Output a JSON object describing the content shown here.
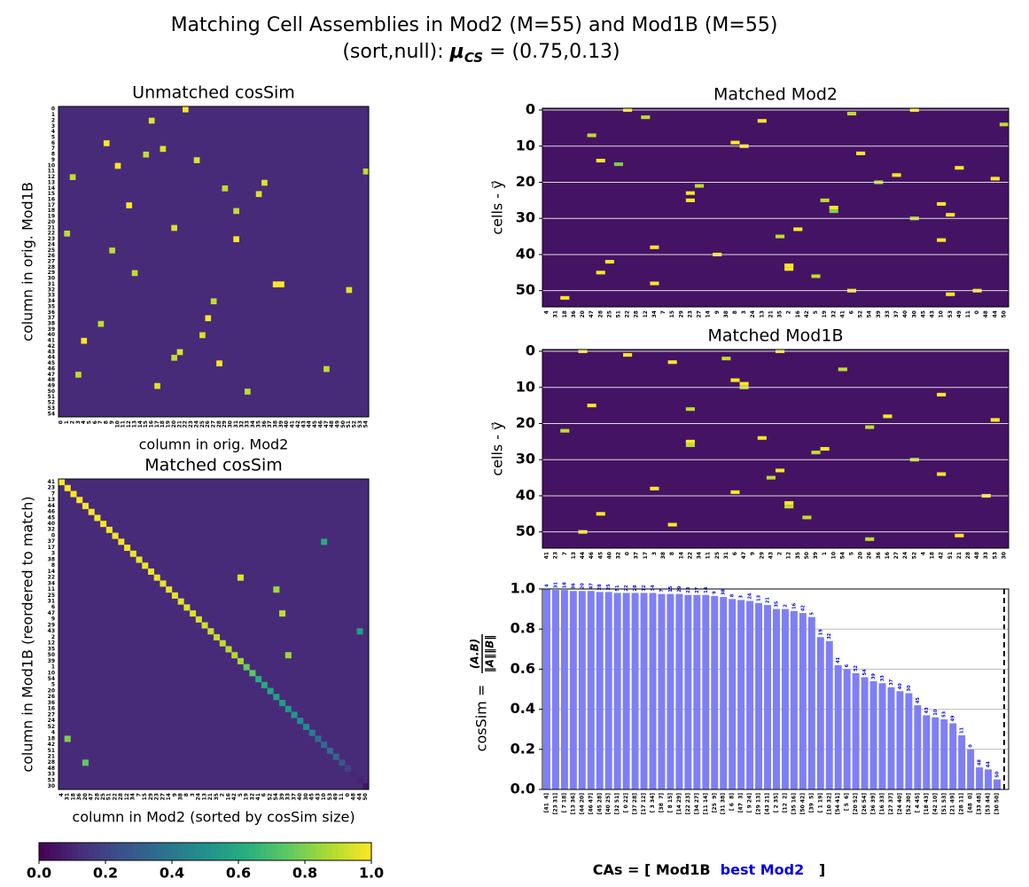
{
  "header": {
    "title": "Matching Cell Assemblies in Mod2 (M=55) and Mod1B (M=55)",
    "subtitle_prefix": "(sort,null): ",
    "mu_symbol": "μ",
    "mu_sub": "CS",
    "subtitle_suffix": " = (0.75,0.13)"
  },
  "chart_data": [
    {
      "type": "heatmap",
      "title": "Unmatched cosSim",
      "xlabel": "column in orig. Mod2",
      "ylabel": "column in orig. Mod1B",
      "colormap": "viridis",
      "background_value": 0.12,
      "xlabels": [
        0,
        1,
        2,
        3,
        4,
        5,
        6,
        7,
        8,
        9,
        10,
        11,
        12,
        13,
        14,
        15,
        16,
        17,
        18,
        19,
        20,
        21,
        22,
        23,
        24,
        25,
        26,
        27,
        28,
        29,
        30,
        31,
        32,
        33,
        34,
        35,
        36,
        37,
        38,
        39,
        40,
        41,
        42,
        43,
        44,
        45,
        46,
        47,
        48,
        49,
        50,
        51,
        52,
        53,
        54
      ],
      "ylabels": [
        0,
        1,
        2,
        3,
        4,
        5,
        6,
        7,
        8,
        9,
        10,
        11,
        12,
        13,
        14,
        15,
        16,
        17,
        18,
        19,
        20,
        21,
        22,
        23,
        24,
        25,
        26,
        27,
        28,
        29,
        30,
        31,
        32,
        33,
        34,
        35,
        36,
        37,
        38,
        39,
        40,
        41,
        42,
        43,
        44,
        45,
        46,
        47,
        48,
        49,
        50,
        51,
        52,
        53,
        54
      ],
      "cells": [
        [
          0,
          22,
          1
        ],
        [
          2,
          16,
          0.95
        ],
        [
          6,
          8,
          1
        ],
        [
          7,
          18,
          0.95
        ],
        [
          8,
          15,
          0.9
        ],
        [
          9,
          24,
          0.95
        ],
        [
          10,
          10,
          1
        ],
        [
          11,
          54,
          0.9
        ],
        [
          12,
          2,
          0.9
        ],
        [
          13,
          36,
          0.95
        ],
        [
          14,
          29,
          0.9
        ],
        [
          15,
          35,
          0.95
        ],
        [
          17,
          12,
          1
        ],
        [
          18,
          31,
          0.9
        ],
        [
          21,
          20,
          0.95
        ],
        [
          22,
          1,
          0.9
        ],
        [
          23,
          31,
          1
        ],
        [
          25,
          9,
          0.9
        ],
        [
          29,
          13,
          0.9
        ],
        [
          31,
          38,
          1
        ],
        [
          31,
          39,
          1
        ],
        [
          32,
          51,
          0.95
        ],
        [
          34,
          27,
          0.9
        ],
        [
          37,
          26,
          1
        ],
        [
          38,
          7,
          0.9
        ],
        [
          40,
          25,
          0.95
        ],
        [
          41,
          4,
          1
        ],
        [
          43,
          21,
          0.95
        ],
        [
          44,
          20,
          0.9
        ],
        [
          45,
          28,
          1
        ],
        [
          46,
          47,
          0.9
        ],
        [
          47,
          3,
          0.9
        ],
        [
          49,
          17,
          0.95
        ],
        [
          50,
          33,
          0.9
        ]
      ]
    },
    {
      "type": "heatmap",
      "title": "Matched cosSim",
      "xlabel": "column in Mod2 (sorted by cosSim size)",
      "ylabel": "column in Mod1B (reordered to match)",
      "colormap": "viridis",
      "background_value": 0.12,
      "xlabels": [
        4,
        31,
        18,
        36,
        20,
        47,
        28,
        25,
        51,
        22,
        28,
        12,
        34,
        7,
        15,
        29,
        23,
        27,
        14,
        9,
        38,
        8,
        3,
        24,
        13,
        21,
        35,
        2,
        16,
        42,
        5,
        19,
        32,
        41,
        6,
        52,
        54,
        39,
        33,
        37,
        40,
        30,
        45,
        43,
        10,
        53,
        49,
        11,
        0,
        48,
        44,
        50
      ],
      "ylabels": [
        41,
        23,
        7,
        13,
        44,
        46,
        45,
        40,
        32,
        0,
        37,
        17,
        3,
        38,
        8,
        14,
        22,
        34,
        11,
        25,
        31,
        6,
        47,
        9,
        29,
        43,
        2,
        12,
        35,
        50,
        39,
        1,
        10,
        54,
        5,
        20,
        26,
        36,
        16,
        27,
        24,
        52,
        4,
        18,
        42,
        51,
        21,
        28,
        48,
        33,
        53,
        30
      ],
      "cells": [
        [
          16,
          30,
          0.95
        ],
        [
          18,
          36,
          0.85
        ],
        [
          22,
          37,
          0.9
        ],
        [
          29,
          38,
          0.85
        ],
        [
          43,
          1,
          0.8
        ],
        [
          47,
          4,
          0.75
        ],
        [
          10,
          44,
          0.6
        ],
        [
          25,
          50,
          0.55
        ]
      ]
    },
    {
      "type": "raster",
      "title": "Matched Mod2",
      "ylabel": "cells - y⃗",
      "colormap": "viridis",
      "background_value": 0.05,
      "grid": true,
      "categories": [
        4,
        31,
        18,
        36,
        20,
        47,
        28,
        25,
        51,
        22,
        28,
        12,
        34,
        7,
        15,
        29,
        23,
        27,
        14,
        9,
        38,
        8,
        3,
        24,
        13,
        21,
        35,
        2,
        16,
        42,
        5,
        19,
        32,
        41,
        6,
        52,
        54,
        39,
        33,
        37,
        40,
        30,
        45,
        43,
        10,
        53,
        49,
        11,
        0,
        48,
        44,
        50
      ],
      "ylim": [
        54.5,
        -0.5
      ],
      "yticks": [
        0,
        10,
        20,
        30,
        40,
        50
      ],
      "cells": [
        [
          0,
          9,
          1
        ],
        [
          2,
          11,
          0.9
        ],
        [
          3,
          24,
          1
        ],
        [
          1,
          34,
          0.9
        ],
        [
          0,
          41,
          1
        ],
        [
          4,
          51,
          0.9
        ],
        [
          7,
          5,
          0.9
        ],
        [
          9,
          21,
          1
        ],
        [
          10,
          22,
          1
        ],
        [
          12,
          35,
          1
        ],
        [
          14,
          6,
          1
        ],
        [
          15,
          8,
          0.8
        ],
        [
          16,
          46,
          1
        ],
        [
          18,
          39,
          1
        ],
        [
          19,
          50,
          1
        ],
        [
          21,
          17,
          0.9
        ],
        [
          23,
          16,
          1
        ],
        [
          25,
          16,
          1
        ],
        [
          25,
          31,
          0.9
        ],
        [
          27,
          32,
          1
        ],
        [
          28,
          32,
          0.8
        ],
        [
          29,
          45,
          1
        ],
        [
          30,
          41,
          0.9
        ],
        [
          33,
          28,
          1
        ],
        [
          35,
          26,
          0.9
        ],
        [
          38,
          12,
          1
        ],
        [
          40,
          19,
          1
        ],
        [
          42,
          7,
          1
        ],
        [
          43,
          27,
          1
        ],
        [
          44,
          27,
          1
        ],
        [
          45,
          6,
          1
        ],
        [
          46,
          30,
          0.9
        ],
        [
          48,
          12,
          1
        ],
        [
          50,
          34,
          1
        ],
        [
          51,
          45,
          1
        ],
        [
          52,
          2,
          1
        ],
        [
          50,
          48,
          1
        ],
        [
          36,
          44,
          1
        ],
        [
          26,
          44,
          1
        ],
        [
          20,
          37,
          0.9
        ]
      ]
    },
    {
      "type": "raster",
      "title": "Matched Mod1B",
      "ylabel": "cells - y⃗",
      "colormap": "viridis",
      "background_value": 0.05,
      "grid": true,
      "categories": [
        41,
        23,
        7,
        13,
        44,
        46,
        45,
        40,
        32,
        0,
        37,
        17,
        3,
        38,
        8,
        14,
        22,
        34,
        11,
        25,
        31,
        6,
        47,
        9,
        29,
        43,
        2,
        12,
        35,
        50,
        39,
        1,
        10,
        54,
        5,
        20,
        26,
        36,
        16,
        27,
        24,
        52,
        4,
        18,
        42,
        51,
        21,
        28,
        48,
        33,
        53,
        30
      ],
      "ylim": [
        54.5,
        -0.5
      ],
      "yticks": [
        0,
        10,
        20,
        30,
        40,
        50
      ],
      "cells": [
        [
          0,
          4,
          1
        ],
        [
          1,
          9,
          1
        ],
        [
          3,
          14,
          1
        ],
        [
          2,
          20,
          0.9
        ],
        [
          5,
          33,
          0.9
        ],
        [
          0,
          26,
          1
        ],
        [
          8,
          21,
          1
        ],
        [
          9,
          22,
          1
        ],
        [
          10,
          22,
          0.9
        ],
        [
          12,
          44,
          1
        ],
        [
          15,
          5,
          1
        ],
        [
          16,
          16,
          0.9
        ],
        [
          18,
          38,
          1
        ],
        [
          19,
          50,
          1
        ],
        [
          22,
          2,
          0.9
        ],
        [
          24,
          24,
          1
        ],
        [
          25,
          16,
          1
        ],
        [
          26,
          16,
          0.9
        ],
        [
          27,
          31,
          1
        ],
        [
          28,
          30,
          0.9
        ],
        [
          30,
          41,
          0.9
        ],
        [
          33,
          26,
          1
        ],
        [
          35,
          25,
          0.9
        ],
        [
          38,
          12,
          1
        ],
        [
          39,
          21,
          1
        ],
        [
          42,
          27,
          1
        ],
        [
          43,
          27,
          0.9
        ],
        [
          45,
          6,
          1
        ],
        [
          46,
          29,
          0.9
        ],
        [
          48,
          14,
          1
        ],
        [
          50,
          4,
          1
        ],
        [
          51,
          46,
          1
        ],
        [
          52,
          36,
          0.9
        ],
        [
          34,
          44,
          1
        ],
        [
          21,
          36,
          0.9
        ],
        [
          40,
          49,
          1
        ]
      ]
    },
    {
      "type": "bar",
      "ylabel": "cosSim = ",
      "ylabel_num": "(A.B)",
      "ylabel_den": "‖A‖‖B‖",
      "xlabel_parts": [
        "CAs = [ Mod1B  ",
        "best Mod2",
        "   ]"
      ],
      "color": "#7f7ff5",
      "grid": true,
      "categories": [
        "[41  4]",
        "[23 31]",
        "[ 7 18]",
        "[13 36]",
        "[44 20]",
        "[46 47]",
        "[45 28]",
        "[40 25]",
        "[32 51]",
        "[ 0 22]",
        "[37 28]",
        "[17 12]",
        "[ 3 34]",
        "[38  7]",
        "[ 8 15]",
        "[14 29]",
        "[22 23]",
        "[34 27]",
        "[11 14]",
        "[25  9]",
        "[31 38]",
        "[ 6  8]",
        "[47  3]",
        "[ 9 24]",
        "[29 13]",
        "[43 21]",
        "[ 2 35]",
        "[12  2]",
        "[35 16]",
        "[50 42]",
        "[39  5]",
        "[ 1 19]",
        "[10 32]",
        "[54 41]",
        "[ 5  6]",
        "[20 52]",
        "[26 54]",
        "[36 39]",
        "[16 33]",
        "[27 37]",
        "[24 40]",
        "[52 30]",
        "[ 4 45]",
        "[18 43]",
        "[42 10]",
        "[51 53]",
        "[21 49]",
        "[28 11]",
        "[48  0]",
        "[33 48]",
        "[53 44]",
        "[30 50]"
      ],
      "values": [
        1.0,
        0.995,
        0.995,
        0.99,
        0.99,
        0.99,
        0.985,
        0.985,
        0.98,
        0.98,
        0.98,
        0.98,
        0.98,
        0.975,
        0.975,
        0.975,
        0.97,
        0.97,
        0.97,
        0.965,
        0.96,
        0.95,
        0.945,
        0.94,
        0.93,
        0.92,
        0.9,
        0.9,
        0.89,
        0.88,
        0.86,
        0.76,
        0.74,
        0.62,
        0.6,
        0.58,
        0.56,
        0.54,
        0.53,
        0.51,
        0.49,
        0.48,
        0.42,
        0.37,
        0.36,
        0.35,
        0.33,
        0.27,
        0.2,
        0.11,
        0.1,
        0.05
      ],
      "bar_labels": [
        "4",
        "31",
        "18",
        "36",
        "20",
        "47",
        "28",
        "25",
        "51",
        "22",
        "28",
        "12",
        "34",
        "7",
        "15",
        "29",
        "23",
        "27",
        "14",
        "9",
        "38",
        "8",
        "3",
        "24",
        "13",
        "21",
        "35",
        "2",
        "16",
        "42",
        "5",
        "19",
        "32",
        "41",
        "6",
        "52",
        "54",
        "39",
        "33",
        "37",
        "40",
        "30",
        "45",
        "43",
        "10",
        "53",
        "49",
        "11",
        "0",
        "48",
        "44",
        "50"
      ],
      "ylim": [
        0,
        1
      ],
      "yticks": [
        {
          "value": 0,
          "label": "0.0"
        },
        {
          "value": 0.2,
          "label": "0.2"
        },
        {
          "value": 0.4,
          "label": "0.4"
        },
        {
          "value": 0.6,
          "label": "0.6"
        },
        {
          "value": 0.8,
          "label": "0.8"
        },
        {
          "value": 1,
          "label": "1.0"
        }
      ]
    },
    {
      "type": "colorbar",
      "colormap": "viridis",
      "xlim": [
        0,
        1
      ],
      "xticks": [
        {
          "value": 0,
          "label": "0.0"
        },
        {
          "value": 0.2,
          "label": "0.2"
        },
        {
          "value": 0.4,
          "label": "0.4"
        },
        {
          "value": 0.6,
          "label": "0.6"
        },
        {
          "value": 0.8,
          "label": "0.8"
        },
        {
          "value": 1,
          "label": "1.0"
        }
      ]
    }
  ]
}
